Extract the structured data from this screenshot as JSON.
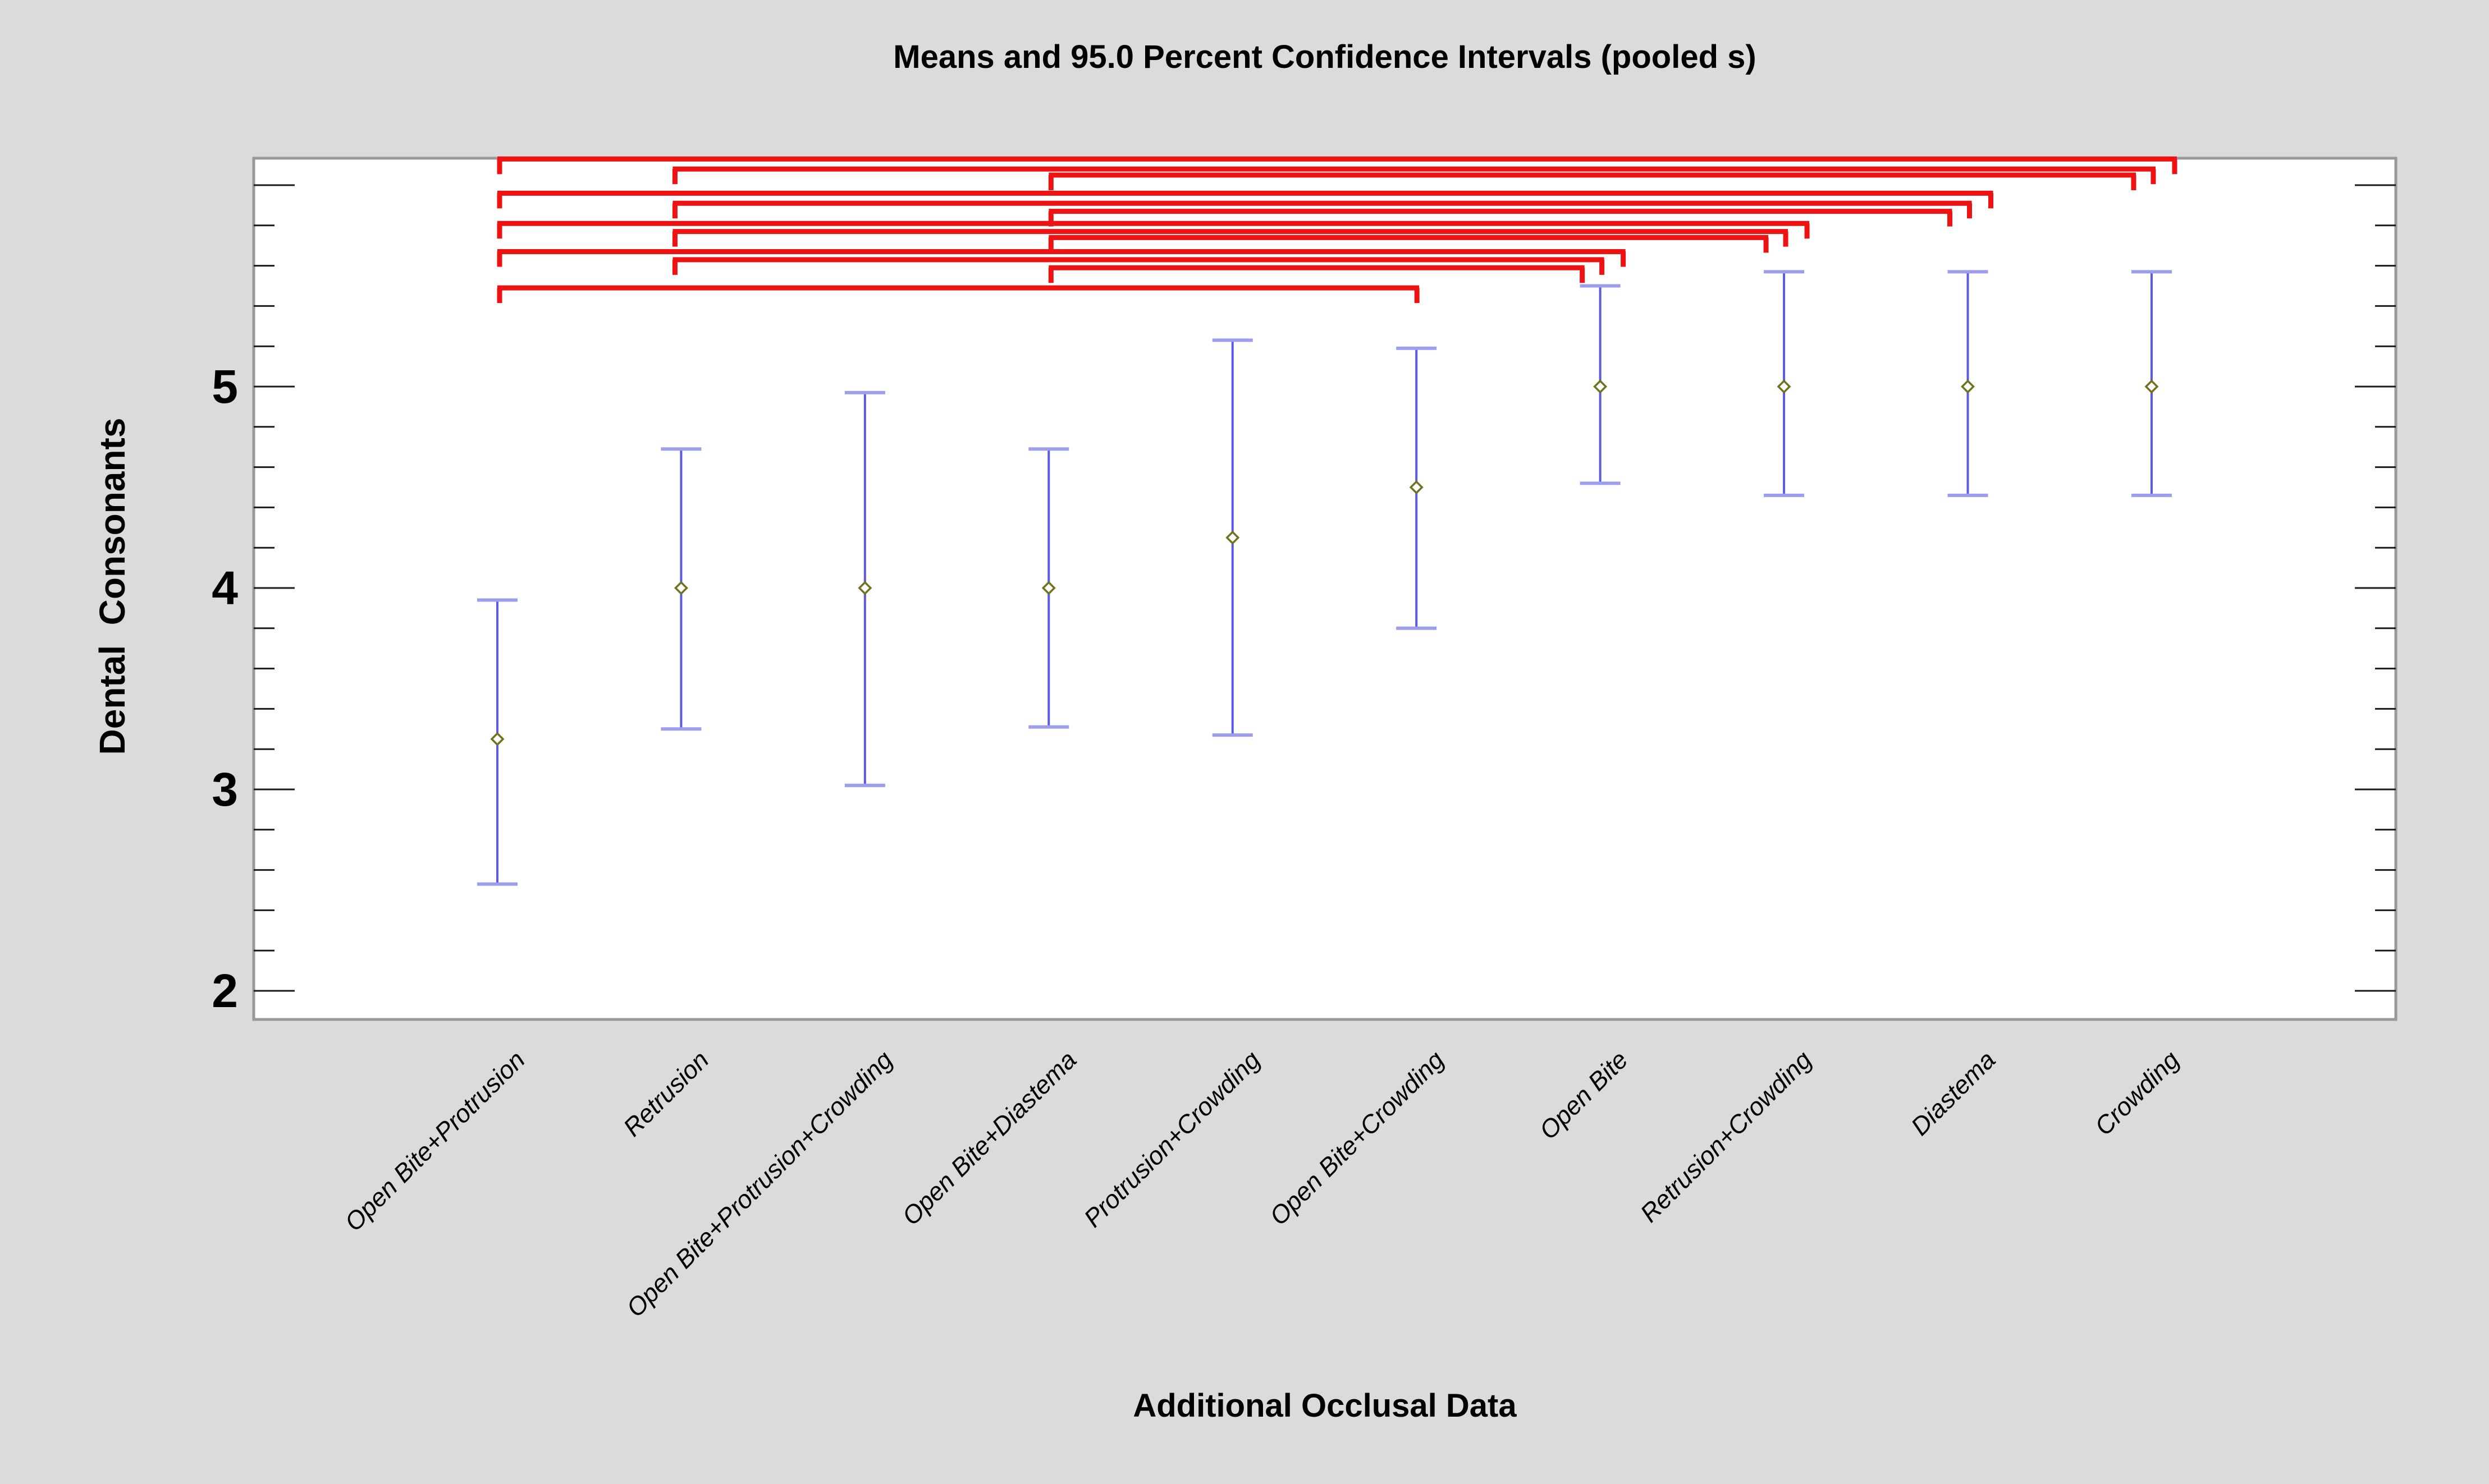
{
  "page": {
    "background_color": "#dbdbdb",
    "plot_background_color": "#ffffff"
  },
  "chart_data": {
    "type": "interval",
    "title": "Means and 95.0 Percent Confidence Intervals (pooled s)",
    "xlabel": "Additional Occlusal Data",
    "ylabel": "Dental  Consonants",
    "legend_position": "none",
    "grid": false,
    "y_axis": {
      "labeled_ticks": [
        5,
        4,
        3,
        2
      ],
      "major_tick_values": [
        2,
        3,
        4,
        5,
        6
      ],
      "minor_tick_step": 0.2,
      "tick_value_range": [
        2.0,
        6.0
      ],
      "ylim": [
        1.86,
        6.13
      ]
    },
    "categories": [
      "Open Bite+Protrusion",
      "Retrusion",
      "Open Bite+Protrusion+Crowding",
      "Open Bite+Diastema",
      "Protrusion+Crowding",
      "Open Bite+Crowding",
      "Open Bite",
      "Retrusion+Crowding",
      "Diastema",
      "Crowding"
    ],
    "points": [
      {
        "category": "Open Bite+Protrusion",
        "mean": 3.25,
        "lower": 2.53,
        "upper": 3.94
      },
      {
        "category": "Retrusion",
        "mean": 4.0,
        "lower": 3.3,
        "upper": 4.69
      },
      {
        "category": "Open Bite+Protrusion+Crowding",
        "mean": 4.0,
        "lower": 3.02,
        "upper": 4.97
      },
      {
        "category": "Open Bite+Diastema",
        "mean": 4.0,
        "lower": 3.31,
        "upper": 4.69
      },
      {
        "category": "Protrusion+Crowding",
        "mean": 4.25,
        "lower": 3.27,
        "upper": 5.23
      },
      {
        "category": "Open Bite+Crowding",
        "mean": 4.5,
        "lower": 3.8,
        "upper": 5.19
      },
      {
        "category": "Open Bite",
        "mean": 5.0,
        "lower": 4.52,
        "upper": 5.5
      },
      {
        "category": "Retrusion+Crowding",
        "mean": 5.0,
        "lower": 4.46,
        "upper": 5.57
      },
      {
        "category": "Diastema",
        "mean": 5.0,
        "lower": 4.46,
        "upper": 5.57
      },
      {
        "category": "Crowding",
        "mean": 5.0,
        "lower": 4.46,
        "upper": 5.57
      }
    ],
    "significance_brackets": [
      {
        "from": 1,
        "to": 10,
        "level": 6.13
      },
      {
        "from": 2,
        "to": 10,
        "level": 6.08
      },
      {
        "from": 4,
        "to": 10,
        "level": 6.05
      },
      {
        "from": 1,
        "to": 9,
        "level": 5.96
      },
      {
        "from": 2,
        "to": 9,
        "level": 5.91
      },
      {
        "from": 4,
        "to": 9,
        "level": 5.87
      },
      {
        "from": 1,
        "to": 8,
        "level": 5.81
      },
      {
        "from": 2,
        "to": 8,
        "level": 5.77
      },
      {
        "from": 4,
        "to": 8,
        "level": 5.74
      },
      {
        "from": 1,
        "to": 7,
        "level": 5.67
      },
      {
        "from": 2,
        "to": 7,
        "level": 5.63
      },
      {
        "from": 4,
        "to": 7,
        "level": 5.59
      },
      {
        "from": 1,
        "to": 6,
        "level": 5.49
      }
    ],
    "colors": {
      "bracket": "#ee1212",
      "interval_line": "#5a5ae2",
      "interval_cap": "#9d9df0",
      "mean_marker_stroke": "#71711f",
      "mean_marker_fill": "#ffffff",
      "frame": "#999999",
      "tick": "#1a1a1a",
      "text": "#000000",
      "plot_bg": "#ffffff"
    }
  }
}
